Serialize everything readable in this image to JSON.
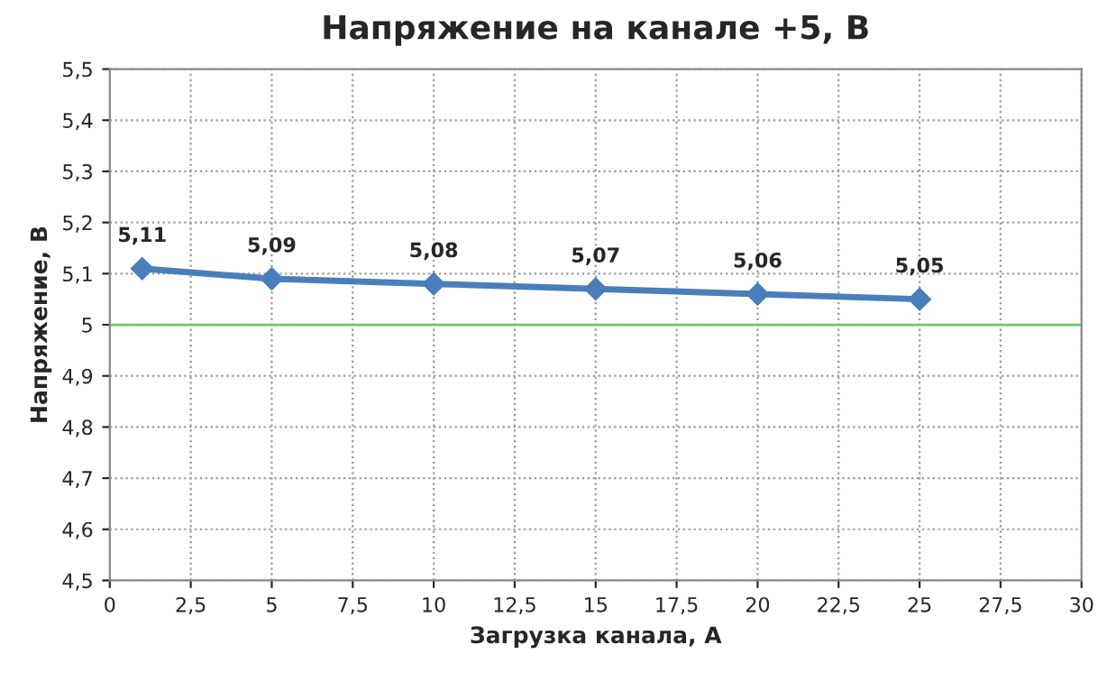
{
  "chart_data": {
    "type": "line",
    "title": "Напряжение на канале +5, В",
    "xlabel": "Загрузка канала, А",
    "ylabel": "Напряжение, В",
    "x": [
      1,
      5,
      10,
      15,
      20,
      25
    ],
    "series": [
      {
        "color": "#4a7ebb",
        "values": [
          5.11,
          5.09,
          5.08,
          5.07,
          5.06,
          5.05
        ],
        "value_labels": [
          "5,11",
          "5,09",
          "5,08",
          "5,07",
          "5,06",
          "5,05"
        ]
      }
    ],
    "xlim": [
      0,
      30
    ],
    "xticks": [
      0,
      {
        "value": 2.5,
        "label": "2,5"
      },
      5,
      {
        "value": 7.5,
        "label": "7,5"
      },
      10,
      {
        "value": 12.5,
        "label": "12,5"
      },
      15,
      {
        "value": 17.5,
        "label": "17,5"
      },
      20,
      {
        "value": 22.5,
        "label": "22,5"
      },
      25,
      {
        "value": 27.5,
        "label": "27,5"
      },
      30
    ],
    "ylim": [
      4.5,
      5.5
    ],
    "yticks": [
      {
        "value": 4.5,
        "label": "4,5"
      },
      {
        "value": 4.6,
        "label": "4,6"
      },
      {
        "value": 4.7,
        "label": "4,7"
      },
      {
        "value": 4.8,
        "label": "4,8"
      },
      {
        "value": 4.9,
        "label": "4,9"
      },
      5,
      {
        "value": 5.1,
        "label": "5,1"
      },
      {
        "value": 5.2,
        "label": "5,2"
      },
      {
        "value": 5.3,
        "label": "5,3"
      },
      {
        "value": 5.4,
        "label": "5,4"
      },
      {
        "value": 5.5,
        "label": "5,5"
      }
    ],
    "ref_lines": [
      {
        "axis": "y",
        "value": 5,
        "color": "#66cc66",
        "line_style": "solid"
      }
    ],
    "grid": true,
    "marker": "diamond",
    "line_style": "solid",
    "legend": false
  }
}
